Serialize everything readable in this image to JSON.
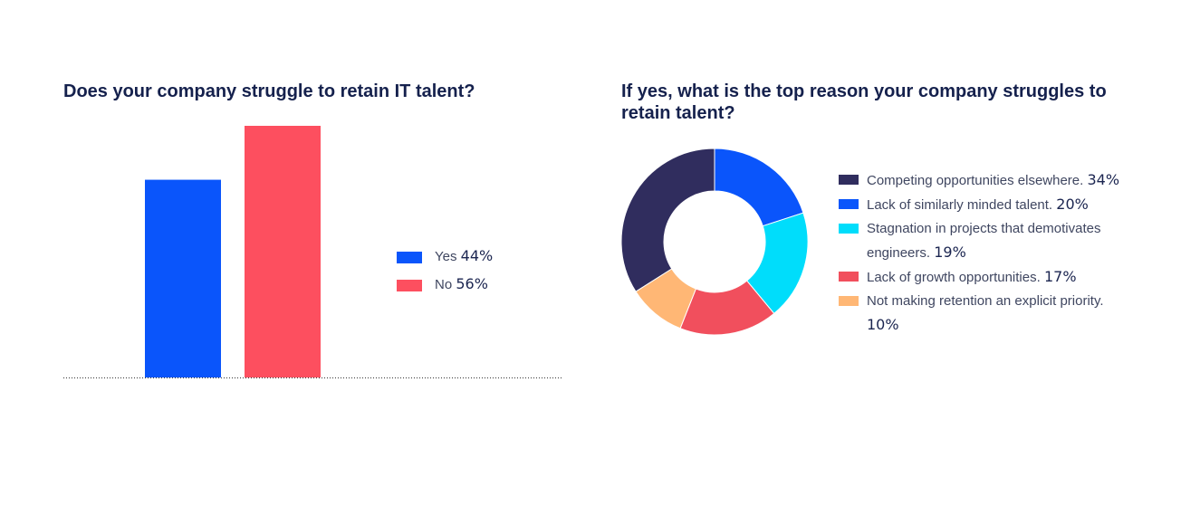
{
  "chart_data": [
    {
      "type": "bar",
      "title": "Does your company struggle to retain IT talent?",
      "categories": [
        "Yes",
        "No"
      ],
      "values": [
        44,
        56
      ],
      "value_labels": [
        "44%",
        "56%"
      ],
      "colors": [
        "#0a55fb",
        "#fd4f5f"
      ],
      "ylim": [
        0,
        56
      ],
      "grid": false,
      "legend": "right"
    },
    {
      "type": "pie",
      "title": "If yes, what is the top reason your company struggles to retain talent?",
      "donut": true,
      "slices": [
        {
          "label": "Competing opportunities elsewhere.",
          "value": 34,
          "value_label": "34%",
          "color": "#302d5e"
        },
        {
          "label": "Lack of similarly minded talent.",
          "value": 20,
          "value_label": "20%",
          "color": "#0a55fb"
        },
        {
          "label": "Stagnation in projects that demotivates engineers.",
          "value": 19,
          "value_label": "19%",
          "color": "#00ddfb"
        },
        {
          "label": "Lack of growth opportunities.",
          "value": 17,
          "value_label": "17%",
          "color": "#f14f5d"
        },
        {
          "label": "Not making retention an explicit priority.",
          "value": 10,
          "value_label": "10%",
          "color": "#ffb775"
        }
      ],
      "legend": "right"
    }
  ]
}
